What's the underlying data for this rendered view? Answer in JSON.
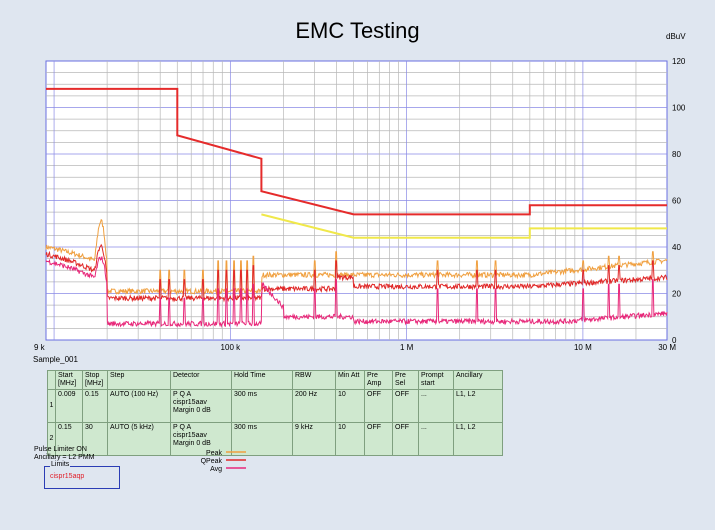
{
  "chart_data": {
    "type": "line",
    "title": "EMC Testing",
    "ylabel": "dBuV",
    "xscale": "log",
    "xlim": [
      9000,
      30000000
    ],
    "ylim": [
      0,
      120
    ],
    "yticks": [
      0,
      20,
      40,
      60,
      80,
      100,
      120
    ],
    "xtick_labels": [
      {
        "x": 9000,
        "label": "9 k"
      },
      {
        "x": 100000,
        "label": "100 k"
      },
      {
        "x": 1000000,
        "label": "1 M"
      },
      {
        "x": 10000000,
        "label": "10 M"
      },
      {
        "x": 30000000,
        "label": "30 M"
      }
    ],
    "grid": true,
    "limit_lines": [
      {
        "color": "#e52b2b",
        "points": [
          [
            9000,
            108
          ],
          [
            50000,
            108
          ],
          [
            50000,
            88
          ],
          [
            150000,
            78
          ],
          [
            150000,
            64
          ],
          [
            500000,
            54
          ],
          [
            5000000,
            54
          ],
          [
            5000000,
            58
          ],
          [
            30000000,
            58
          ]
        ]
      },
      {
        "color": "#f0e84a",
        "points": [
          [
            150000,
            54
          ],
          [
            500000,
            44
          ],
          [
            5000000,
            44
          ],
          [
            5000000,
            48
          ],
          [
            30000000,
            48
          ]
        ]
      }
    ],
    "series": [
      {
        "name": "Peak",
        "color": "#f0a040"
      },
      {
        "name": "QPeak",
        "color": "#e02828"
      },
      {
        "name": "Avg",
        "color": "#e8287a"
      }
    ]
  },
  "sample_label": "Sample_001",
  "params_table": {
    "headers": [
      "Start [MHz]",
      "Stop [MHz]",
      "Step",
      "Detector",
      "Hold Time",
      "RBW",
      "Min Att",
      "Pre Amp",
      "Pre Sel",
      "Prompt start",
      "Ancillary"
    ],
    "rows": [
      {
        "num": "1",
        "start": "0.009",
        "stop": "0.15",
        "step": "AUTO (100 Hz)",
        "detector": [
          "P Q A",
          "cispr15aav",
          "Margin 0 dB"
        ],
        "hold": "300 ms",
        "rbw": "200 Hz",
        "minatt": "10",
        "preamp": "OFF",
        "presel": "OFF",
        "prompt": "...",
        "ancillary": "L1, L2"
      },
      {
        "num": "2",
        "start": "0.15",
        "stop": "30",
        "step": "AUTO (5 kHz)",
        "detector": [
          "P Q A",
          "cispr15aav",
          "Margin 0 dB"
        ],
        "hold": "300 ms",
        "rbw": "9 kHz",
        "minatt": "10",
        "preamp": "OFF",
        "presel": "OFF",
        "prompt": "...",
        "ancillary": "L1, L2"
      }
    ]
  },
  "footer": {
    "pulse_limiter": "Pulse Limiter ON",
    "ancillary": "Ancillary = L2 PMM",
    "limits_title": "Limits",
    "limits_item": "cispr15aqp"
  }
}
